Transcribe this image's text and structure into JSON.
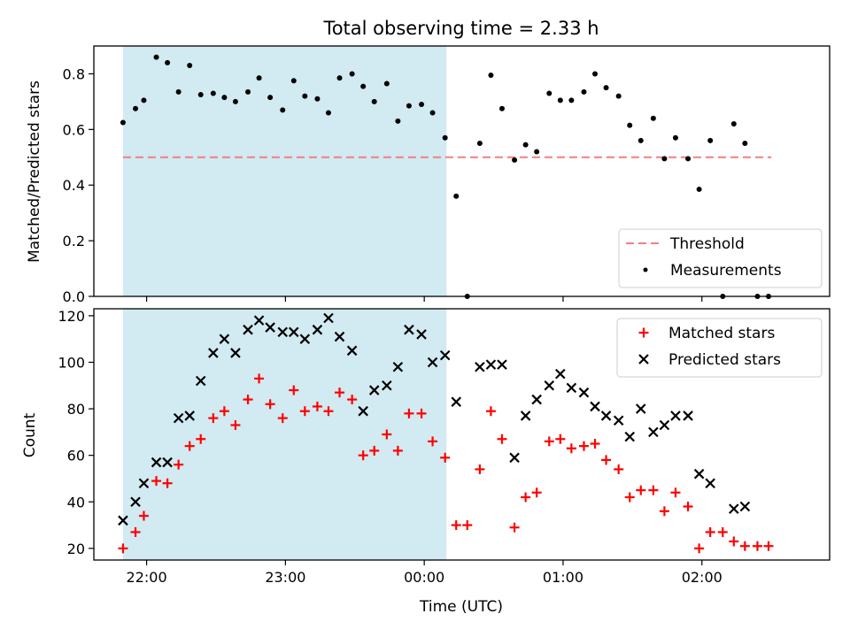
{
  "chart_data": [
    {
      "type": "scatter",
      "title": "Total observing time = 2.33 h",
      "xlabel": "",
      "ylabel": "Matched/Predicted stars",
      "xlim": [
        21.62,
        26.92
      ],
      "ylim": [
        0.0,
        0.9
      ],
      "yticks": [
        0.0,
        0.2,
        0.4,
        0.6,
        0.8
      ],
      "xticks": [
        22,
        23,
        24,
        25,
        26
      ],
      "xtick_labels": [
        "22:00",
        "23:00",
        "00:00",
        "01:00",
        "02:00"
      ],
      "show_xtick_labels": false,
      "shaded_region": {
        "from": 21.83,
        "to": 24.16,
        "color": "#add8e6"
      },
      "threshold": {
        "name": "Threshold",
        "value": 0.5,
        "from": 21.83,
        "to": 26.5,
        "color": "#f08080"
      },
      "legend": {
        "placement": "lower right",
        "entries": [
          "Threshold",
          "Measurements"
        ]
      },
      "series": [
        {
          "name": "Measurements",
          "marker": "dot",
          "color": "#000000",
          "x": [
            21.83,
            21.92,
            21.98,
            22.07,
            22.15,
            22.23,
            22.31,
            22.39,
            22.48,
            22.56,
            22.64,
            22.73,
            22.81,
            22.89,
            22.98,
            23.06,
            23.14,
            23.23,
            23.31,
            23.39,
            23.48,
            23.56,
            23.64,
            23.73,
            23.81,
            23.89,
            23.98,
            24.06,
            24.15,
            24.23,
            24.31,
            24.4,
            24.48,
            24.56,
            24.65,
            24.73,
            24.81,
            24.9,
            24.98,
            25.06,
            25.15,
            25.23,
            25.31,
            25.4,
            25.48,
            25.56,
            25.65,
            25.73,
            25.81,
            25.9,
            25.98,
            26.06,
            26.15,
            26.23,
            26.31,
            26.4,
            26.48
          ],
          "y": [
            0.625,
            0.675,
            0.705,
            0.86,
            0.84,
            0.735,
            0.83,
            0.725,
            0.73,
            0.715,
            0.7,
            0.735,
            0.785,
            0.715,
            0.67,
            0.775,
            0.72,
            0.71,
            0.66,
            0.785,
            0.8,
            0.755,
            0.7,
            0.765,
            0.63,
            0.685,
            0.69,
            0.66,
            0.57,
            0.36,
            0.0,
            0.55,
            0.795,
            0.675,
            0.49,
            0.545,
            0.52,
            0.73,
            0.705,
            0.705,
            0.735,
            0.8,
            0.75,
            0.72,
            0.615,
            0.56,
            0.64,
            0.495,
            0.57,
            0.495,
            0.385,
            0.56,
            0.0,
            0.62,
            0.55,
            0.0,
            0.0
          ]
        }
      ]
    },
    {
      "type": "scatter",
      "title": "",
      "xlabel": "Time (UTC)",
      "ylabel": "Count",
      "xlim": [
        21.62,
        26.92
      ],
      "ylim": [
        15,
        123
      ],
      "yticks": [
        20,
        40,
        60,
        80,
        100,
        120
      ],
      "xticks": [
        22,
        23,
        24,
        25,
        26
      ],
      "xtick_labels": [
        "22:00",
        "23:00",
        "00:00",
        "01:00",
        "02:00"
      ],
      "shaded_region": {
        "from": 21.83,
        "to": 24.16,
        "color": "#add8e6"
      },
      "legend": {
        "placement": "upper right",
        "entries": [
          "Matched stars",
          "Predicted stars"
        ]
      },
      "series": [
        {
          "name": "Matched stars",
          "marker": "plus",
          "color": "#ff0000",
          "x": [
            21.83,
            21.92,
            21.98,
            22.07,
            22.15,
            22.23,
            22.31,
            22.39,
            22.48,
            22.56,
            22.64,
            22.73,
            22.81,
            22.89,
            22.98,
            23.06,
            23.14,
            23.23,
            23.31,
            23.39,
            23.48,
            23.56,
            23.64,
            23.73,
            23.81,
            23.89,
            23.98,
            24.06,
            24.15,
            24.23,
            24.31,
            24.4,
            24.48,
            24.56,
            24.65,
            24.73,
            24.81,
            24.9,
            24.98,
            25.06,
            25.15,
            25.23,
            25.31,
            25.4,
            25.48,
            25.56,
            25.65,
            25.73,
            25.81,
            25.9,
            25.98,
            26.06,
            26.15,
            26.23,
            26.31,
            26.4,
            26.48
          ],
          "y": [
            20,
            27,
            34,
            49,
            48,
            56,
            64,
            67,
            76,
            79,
            73,
            84,
            93,
            82,
            76,
            88,
            79,
            81,
            79,
            87,
            84,
            60,
            62,
            69,
            62,
            78,
            78,
            66,
            59,
            30,
            30,
            54,
            79,
            67,
            29,
            42,
            44,
            66,
            67,
            63,
            64,
            65,
            58,
            54,
            42,
            45,
            45,
            36,
            44,
            38,
            20,
            27,
            27,
            23,
            21,
            21,
            21
          ]
        },
        {
          "name": "Predicted stars",
          "marker": "x",
          "color": "#000000",
          "x": [
            21.83,
            21.92,
            21.98,
            22.07,
            22.15,
            22.23,
            22.31,
            22.39,
            22.48,
            22.56,
            22.64,
            22.73,
            22.81,
            22.89,
            22.98,
            23.06,
            23.14,
            23.23,
            23.31,
            23.39,
            23.48,
            23.56,
            23.64,
            23.73,
            23.81,
            23.89,
            23.98,
            24.06,
            24.15,
            24.23,
            24.4,
            24.48,
            24.56,
            24.65,
            24.73,
            24.81,
            24.9,
            24.98,
            25.06,
            25.15,
            25.23,
            25.31,
            25.4,
            25.48,
            25.56,
            25.65,
            25.73,
            25.81,
            25.9,
            25.98,
            26.06,
            26.23,
            26.31
          ],
          "y": [
            32,
            40,
            48,
            57,
            57,
            76,
            77,
            92,
            104,
            110,
            104,
            114,
            118,
            115,
            113,
            113,
            110,
            114,
            119,
            111,
            105,
            79,
            88,
            90,
            98,
            114,
            112,
            100,
            103,
            83,
            98,
            99,
            99,
            59,
            77,
            84,
            90,
            95,
            89,
            87,
            81,
            77,
            75,
            68,
            80,
            70,
            73,
            77,
            77,
            52,
            48,
            37,
            38
          ]
        }
      ]
    }
  ]
}
